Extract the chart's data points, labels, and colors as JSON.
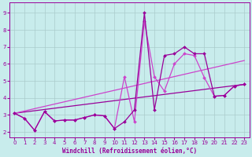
{
  "xlabel": "Windchill (Refroidissement éolien,°C)",
  "xlim": [
    -0.5,
    23.5
  ],
  "ylim": [
    1.7,
    9.6
  ],
  "xticks": [
    0,
    1,
    2,
    3,
    4,
    5,
    6,
    7,
    8,
    9,
    10,
    11,
    12,
    13,
    14,
    15,
    16,
    17,
    18,
    19,
    20,
    21,
    22,
    23
  ],
  "yticks": [
    2,
    3,
    4,
    5,
    6,
    7,
    8,
    9
  ],
  "background_color": "#c8ecec",
  "grid_color": "#aacccc",
  "line_color1": "#990099",
  "line_color2": "#cc44cc",
  "line1": {
    "x": [
      0,
      1,
      2,
      3,
      4,
      5,
      6,
      7,
      8,
      9,
      10,
      11,
      12,
      13,
      14,
      15,
      16,
      17,
      18,
      19,
      20,
      21,
      22,
      23
    ],
    "y": [
      3.1,
      2.8,
      2.1,
      3.2,
      2.65,
      2.7,
      2.7,
      2.85,
      3.0,
      2.95,
      2.2,
      2.6,
      3.3,
      9.0,
      3.3,
      6.5,
      6.6,
      7.0,
      6.6,
      6.6,
      4.1,
      4.15,
      4.7,
      4.8
    ]
  },
  "line2": {
    "x": [
      0,
      1,
      2,
      3,
      4,
      5,
      6,
      7,
      8,
      9,
      10,
      11,
      12,
      13,
      14,
      15,
      16,
      17,
      18,
      19,
      20,
      21,
      22,
      23
    ],
    "y": [
      3.1,
      2.8,
      2.1,
      3.2,
      2.65,
      2.7,
      2.7,
      2.85,
      3.0,
      2.95,
      2.2,
      5.25,
      2.6,
      8.5,
      5.25,
      4.4,
      6.0,
      6.6,
      6.5,
      5.2,
      4.1,
      4.15,
      4.7,
      4.8
    ]
  },
  "trend1": {
    "x": [
      0,
      23
    ],
    "y": [
      3.1,
      4.8
    ]
  },
  "trend2": {
    "x": [
      0,
      23
    ],
    "y": [
      3.1,
      6.2
    ]
  }
}
